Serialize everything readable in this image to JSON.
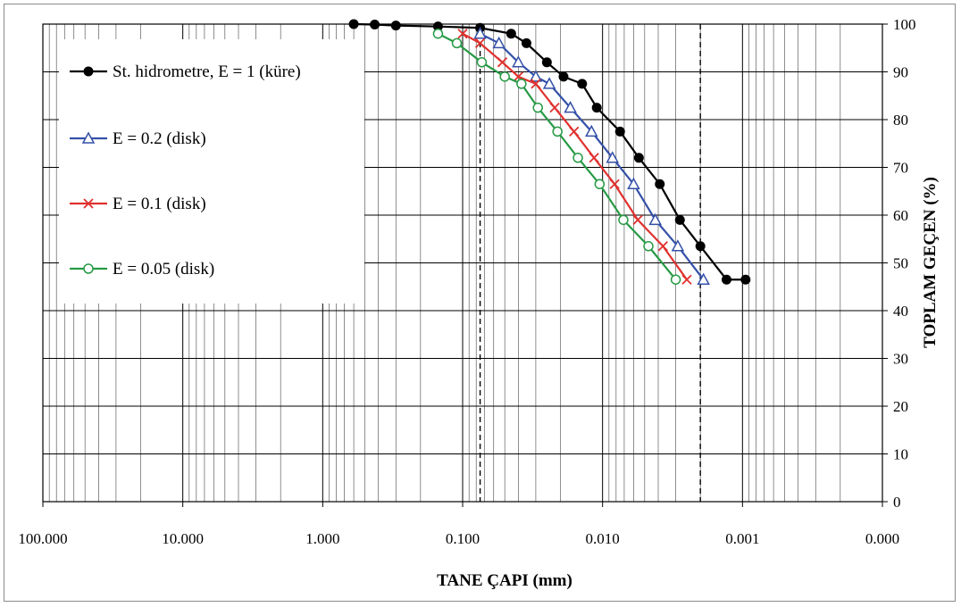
{
  "chart_data": {
    "type": "line",
    "xscale": "log-reversed",
    "xlim": [
      100,
      0.0001
    ],
    "ylim": [
      0,
      100
    ],
    "grid": true,
    "legend_position": "top-left",
    "xlabel": "TANE ÇAPI (mm)",
    "ylabel": "TOPLAM GEÇEN (%)",
    "x_tick_labels": [
      "100.000",
      "10.000",
      "1.000",
      "0.100",
      "0.010",
      "0.001",
      "0.000"
    ],
    "y_tick_labels": [
      "0",
      "10",
      "20",
      "30",
      "40",
      "50",
      "60",
      "70",
      "80",
      "90",
      "100"
    ],
    "reference_lines_x": [
      0.075,
      0.002
    ],
    "series": [
      {
        "name": "St. hidrometre, E = 1 (küre)",
        "color": "#000000",
        "marker": "filled-circle",
        "x": [
          0.6,
          0.425,
          0.3,
          0.15,
          0.075,
          0.045,
          0.035,
          0.025,
          0.019,
          0.014,
          0.011,
          0.0075,
          0.0055,
          0.0039,
          0.0028,
          0.002,
          0.0013,
          0.00095
        ],
        "y": [
          100,
          99.9,
          99.7,
          99.5,
          99.2,
          98,
          96,
          92,
          89,
          87.5,
          82.5,
          77.5,
          72,
          66.5,
          59,
          53.5,
          46.5,
          46.5
        ]
      },
      {
        "name": "E = 0.2 (disk)",
        "color": "#3450a8",
        "marker": "open-triangle",
        "x": [
          0.075,
          0.055,
          0.04,
          0.03,
          0.024,
          0.017,
          0.012,
          0.0085,
          0.006,
          0.0042,
          0.0029,
          0.0019
        ],
        "y": [
          98,
          96,
          92,
          89,
          87.5,
          82.5,
          77.5,
          72,
          66.5,
          59,
          53.5,
          46.5
        ]
      },
      {
        "name": "E = 0.1 (disk)",
        "color": "#e0312e",
        "marker": "cross",
        "x": [
          0.1,
          0.075,
          0.052,
          0.04,
          0.03,
          0.022,
          0.016,
          0.0115,
          0.0082,
          0.0056,
          0.0037,
          0.0025
        ],
        "y": [
          98,
          96,
          92,
          89,
          87.5,
          82.5,
          77.5,
          72,
          66.5,
          59,
          53.5,
          46.5
        ]
      },
      {
        "name": "E = 0.05 (disk)",
        "color": "#279a45",
        "marker": "open-circle",
        "x": [
          0.15,
          0.11,
          0.073,
          0.05,
          0.038,
          0.029,
          0.021,
          0.015,
          0.0105,
          0.0071,
          0.0047,
          0.003
        ],
        "y": [
          98,
          96,
          92,
          89,
          87.5,
          82.5,
          77.5,
          72,
          66.5,
          59,
          53.5,
          46.5
        ]
      }
    ]
  }
}
